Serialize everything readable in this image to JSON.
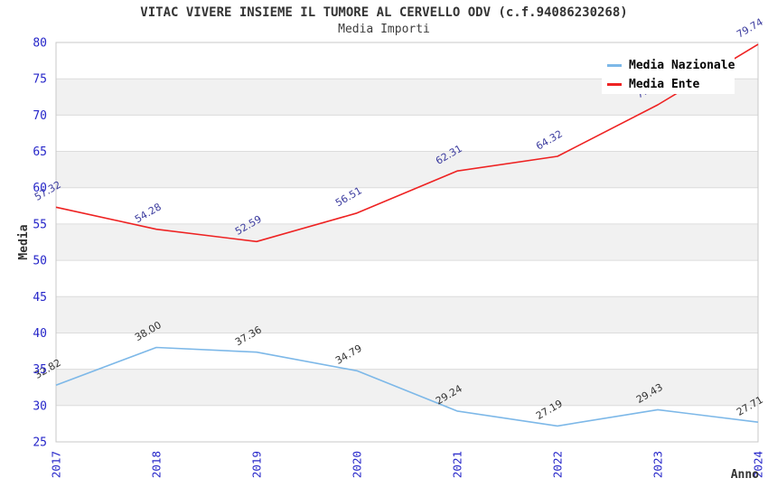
{
  "chart_data": {
    "type": "line",
    "title": "VITAC VIVERE INSIEME IL TUMORE AL CERVELLO ODV (c.f.94086230268)",
    "subtitle": "Media Importi",
    "xlabel": "Anno",
    "ylabel": "Media",
    "x": [
      "2017",
      "2018",
      "2019",
      "2020",
      "2021",
      "2022",
      "2023",
      "2024"
    ],
    "ylim": [
      25,
      80
    ],
    "ytick_step": 5,
    "grid": true,
    "legend_position": "top-right",
    "series": [
      {
        "name": "Media Nazionale",
        "color": "#7db8e8",
        "label_color": "#333333",
        "values": [
          32.82,
          38.0,
          37.36,
          34.79,
          29.24,
          27.19,
          29.43,
          27.71
        ]
      },
      {
        "name": "Media Ente",
        "color": "#ee2222",
        "label_color": "#3b3b9e",
        "values": [
          57.32,
          54.28,
          52.59,
          56.51,
          62.31,
          64.32,
          71.41,
          79.74
        ]
      }
    ]
  },
  "style": {
    "tick_color": "#2626c9",
    "band_color": "#f1f1f1",
    "gridline_color": "#dcdcdc",
    "border_color": "#c9c9c9",
    "title_color": "#333333",
    "axis_title_color": "#333333",
    "legend_text_color": "#000000",
    "legend_bg": "#ffffff",
    "background": "#ffffff"
  }
}
